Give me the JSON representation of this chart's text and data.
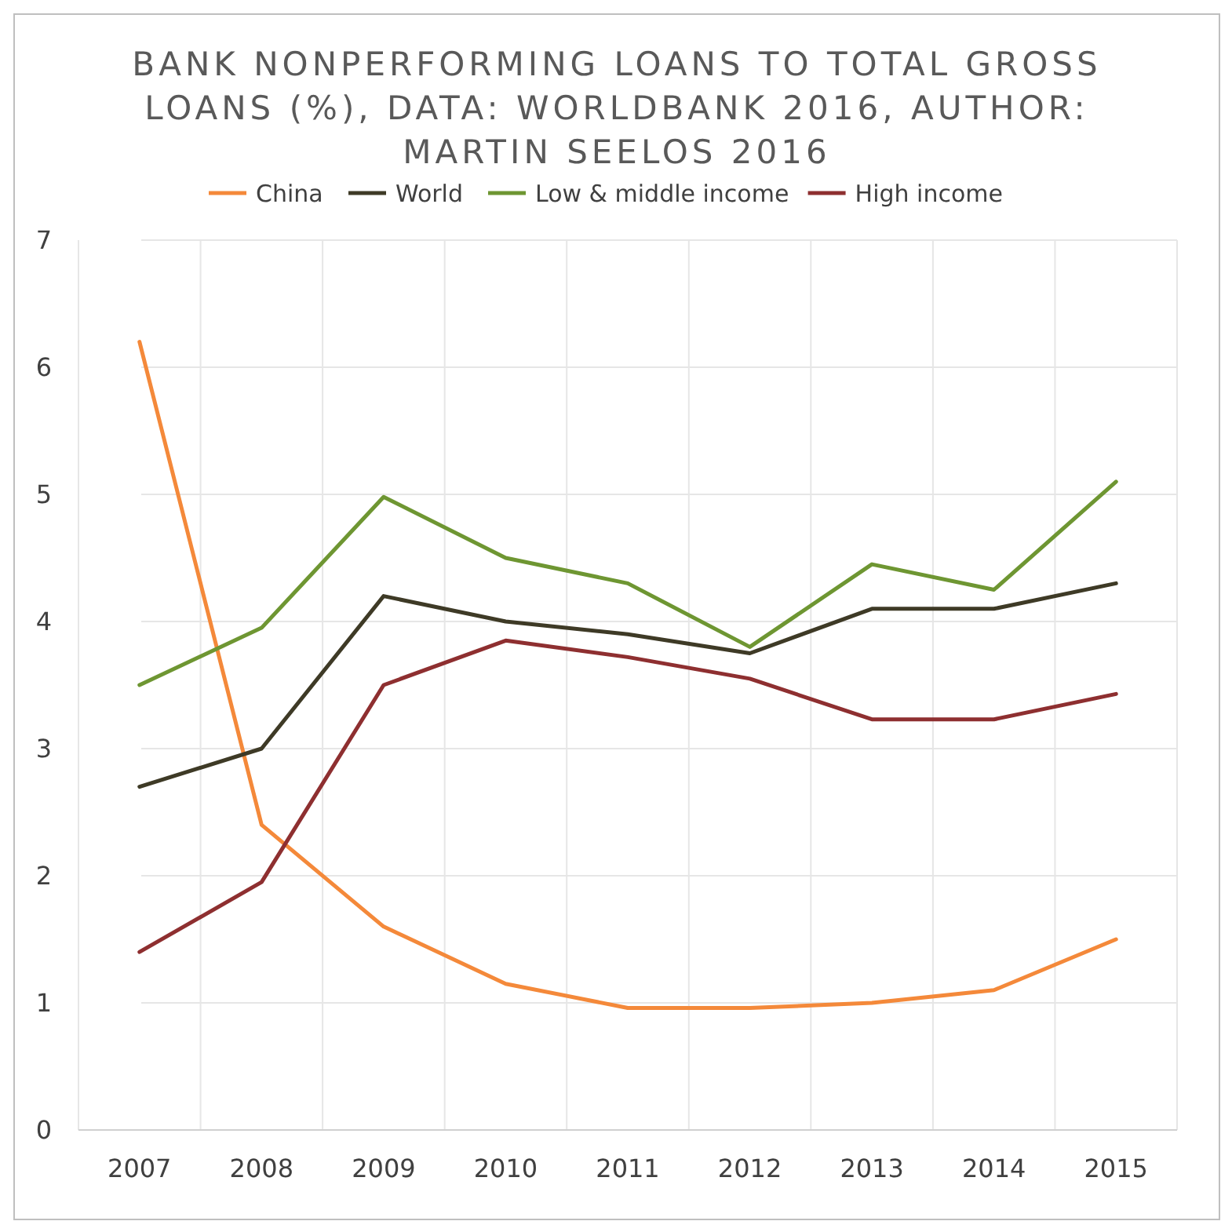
{
  "chart_data": {
    "type": "line",
    "title": "BANK NONPERFORMING LOANS TO TOTAL GROSS LOANS (%), DATA: WORLDBANK 2016, AUTHOR: MARTIN SEELOS 2016",
    "categories": [
      "2007",
      "2008",
      "2009",
      "2010",
      "2011",
      "2012",
      "2013",
      "2014",
      "2015"
    ],
    "series": [
      {
        "name": "China",
        "color": "#f4893a",
        "values": [
          6.2,
          2.4,
          1.6,
          1.15,
          0.96,
          0.96,
          1.0,
          1.1,
          1.5
        ]
      },
      {
        "name": "World",
        "color": "#3e3a26",
        "values": [
          2.7,
          3.0,
          4.2,
          4.0,
          3.9,
          3.75,
          4.1,
          4.1,
          4.3
        ]
      },
      {
        "name": "Low & middle income",
        "color": "#6e9632",
        "values": [
          3.5,
          3.95,
          4.98,
          4.5,
          4.3,
          3.8,
          4.45,
          4.25,
          5.1
        ]
      },
      {
        "name": "High income",
        "color": "#8e2f30",
        "values": [
          1.4,
          1.95,
          3.5,
          3.85,
          3.72,
          3.55,
          3.23,
          3.23,
          3.43
        ]
      }
    ],
    "ylim": [
      0,
      7
    ],
    "yticks": [
      0,
      1,
      2,
      3,
      4,
      5,
      6,
      7
    ],
    "grid": true,
    "legend": "top",
    "marker": "none",
    "line_style": "solid"
  }
}
